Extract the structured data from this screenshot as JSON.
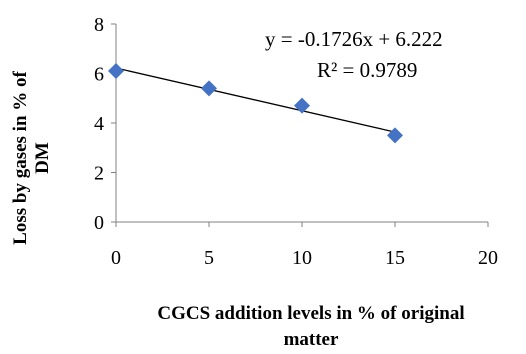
{
  "chart_data": {
    "type": "scatter",
    "series": [
      {
        "values": [
          {
            "x": 0,
            "y": 6.1
          },
          {
            "x": 5,
            "y": 5.4
          },
          {
            "x": 10,
            "y": 4.7
          },
          {
            "x": 15,
            "y": 3.5
          }
        ],
        "marker": "diamond",
        "color": "#4472C4"
      }
    ],
    "trendline": {
      "type": "linear",
      "slope": -0.1726,
      "intercept": 6.222,
      "x_range": [
        0,
        15
      ],
      "color": "#000000"
    },
    "annotations": {
      "equation": "y = -0.1726x + 6.222",
      "r_squared": "R² = 0.9789"
    },
    "xlabel": {
      "line1": "CGCS addition levels in % of original",
      "line2": "matter"
    },
    "ylabel": {
      "line1": "Loss by gases in % of",
      "line2": "DM"
    },
    "xlim": [
      0,
      20
    ],
    "ylim": [
      0,
      8
    ],
    "xticks": [
      "0",
      "5",
      "10",
      "15",
      "20"
    ],
    "yticks": [
      "0",
      "2",
      "4",
      "6",
      "8"
    ],
    "grid": false,
    "legend": "none"
  }
}
